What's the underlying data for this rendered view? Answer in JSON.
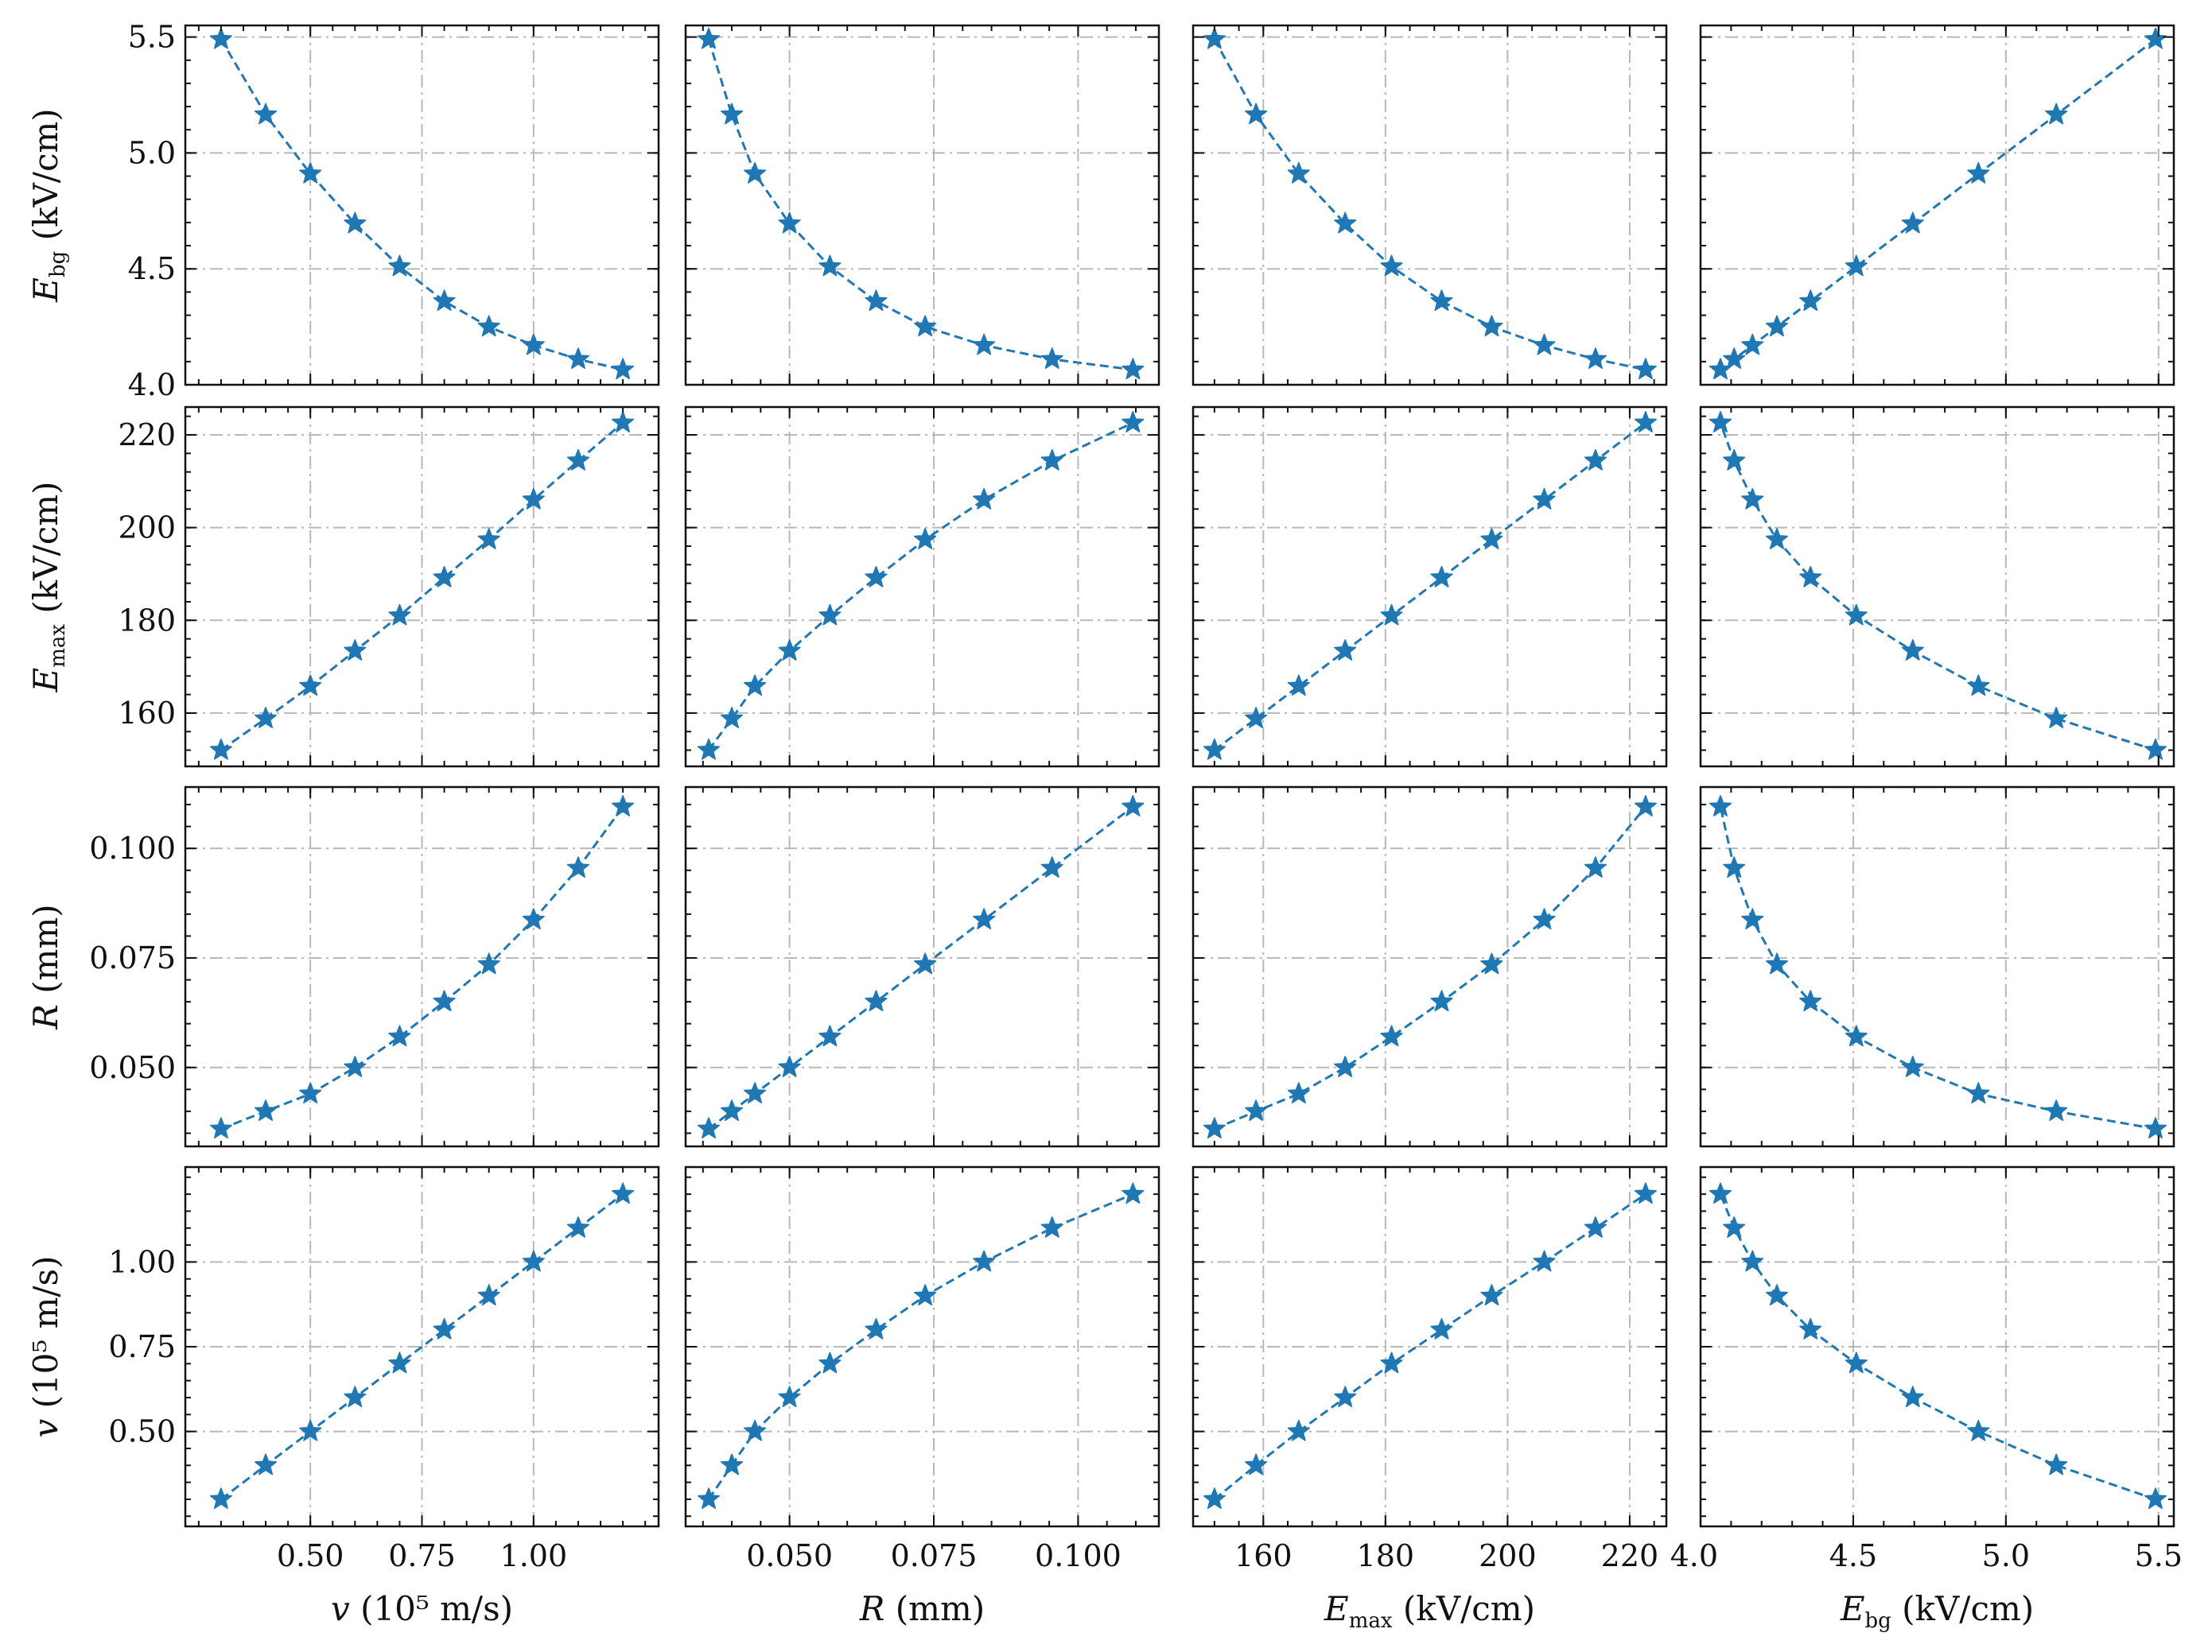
{
  "chart_data": {
    "type": "scatter",
    "description_layout": "4x4 pair plot",
    "marker": "star",
    "line_style": "dashed",
    "grid": true,
    "color": "#1f77b4",
    "variables": [
      {
        "key": "v",
        "label_symbol": "v",
        "label_text": "(10⁵ m/s)",
        "ticks": [
          0.5,
          0.75,
          1.0
        ],
        "tick_labels": [
          "0.50",
          "0.75",
          "1.00"
        ],
        "lim": [
          0.22,
          1.28
        ],
        "values": [
          0.3,
          0.4,
          0.5,
          0.6,
          0.7,
          0.8,
          0.9,
          1.0,
          1.1,
          1.2
        ]
      },
      {
        "key": "R",
        "label_symbol": "R",
        "label_text": "(mm)",
        "ticks": [
          0.05,
          0.075,
          0.1
        ],
        "tick_labels": [
          "0.050",
          "0.075",
          "0.100"
        ],
        "lim": [
          0.032,
          0.114
        ],
        "values": [
          0.036,
          0.04,
          0.044,
          0.05,
          0.057,
          0.065,
          0.0735,
          0.0837,
          0.0955,
          0.1095
        ]
      },
      {
        "key": "Emax",
        "label_symbol": "E",
        "label_sub": "max",
        "label_text": "(kV/cm)",
        "ticks": [
          160,
          180,
          200,
          220
        ],
        "tick_labels": [
          "160",
          "180",
          "200",
          "220"
        ],
        "lim": [
          148.5,
          226
        ],
        "values": [
          152,
          158.8,
          165.8,
          173.4,
          181.0,
          189.2,
          197.4,
          206.0,
          214.4,
          222.6
        ]
      },
      {
        "key": "Ebg",
        "label_symbol": "E",
        "label_sub": "bg",
        "label_text": "(kV/cm)",
        "ticks": [
          4.0,
          4.5,
          5.0,
          5.5
        ],
        "tick_labels": [
          "4.0",
          "4.5",
          "5.0",
          "5.5"
        ],
        "lim": [
          4.0,
          5.55
        ],
        "values": [
          5.49,
          5.165,
          4.91,
          4.695,
          4.51,
          4.36,
          4.25,
          4.17,
          4.11,
          4.065
        ]
      }
    ],
    "row_order": [
      "Ebg",
      "Emax",
      "R",
      "v"
    ],
    "column_order": [
      "v",
      "R",
      "Emax",
      "Ebg"
    ]
  }
}
